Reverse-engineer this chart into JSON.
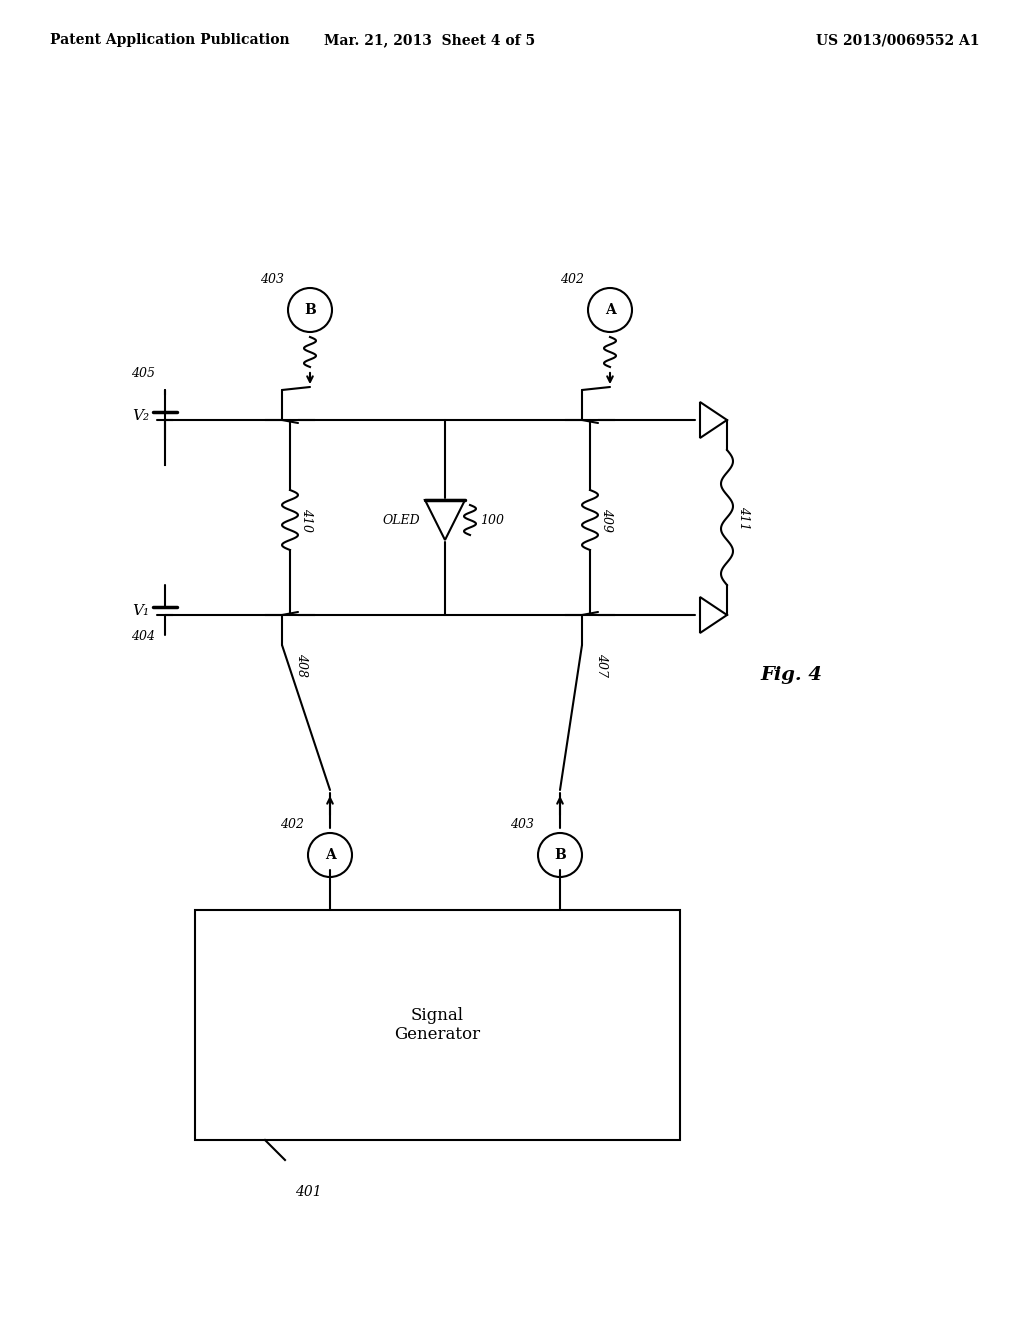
{
  "bg_color": "#ffffff",
  "line_color": "#000000",
  "header_left": "Patent Application Publication",
  "header_mid": "Mar. 21, 2013  Sheet 4 of 5",
  "header_right": "US 2013/0069552 A1",
  "fig_label": "Fig. 4",
  "signal_gen_label": "Signal\nGenerator",
  "signal_gen_ref": "401",
  "oled_label": "OLED",
  "oled_ref": "100",
  "labels": {
    "402_top": "402",
    "403_top": "403",
    "402_bot": "402",
    "403_bot": "403",
    "404": "404",
    "405": "405",
    "407": "407",
    "408": "408",
    "409": "409",
    "410": "410",
    "411": "411"
  },
  "circle_A": "A",
  "circle_B": "B",
  "V1_label": "V₁",
  "V2_label": "V₂"
}
